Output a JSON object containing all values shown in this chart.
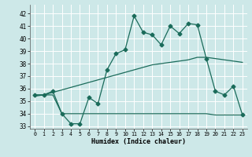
{
  "xlabel": "Humidex (Indice chaleur)",
  "background_color": "#cde8e8",
  "grid_color": "#ffffff",
  "line_color": "#1a6b5a",
  "x_ticks": [
    0,
    1,
    2,
    3,
    4,
    5,
    6,
    7,
    8,
    9,
    10,
    11,
    12,
    13,
    14,
    15,
    16,
    17,
    18,
    19,
    20,
    21,
    22,
    23
  ],
  "ylim": [
    32.8,
    42.7
  ],
  "xlim": [
    -0.5,
    23.5
  ],
  "yticks": [
    33,
    34,
    35,
    36,
    37,
    38,
    39,
    40,
    41,
    42
  ],
  "series1_x": [
    0,
    1,
    2,
    3,
    4,
    5,
    6,
    7,
    8,
    9,
    10,
    11,
    12,
    13,
    14,
    15,
    16,
    17,
    18,
    19,
    20,
    21,
    22,
    23
  ],
  "series1_y": [
    35.5,
    35.5,
    35.8,
    34.0,
    33.2,
    33.2,
    35.3,
    34.8,
    37.5,
    38.8,
    39.1,
    41.8,
    40.5,
    40.3,
    39.5,
    41.0,
    40.4,
    41.2,
    41.1,
    38.4,
    35.8,
    35.5,
    36.2,
    33.9
  ],
  "series2_x": [
    0,
    1,
    2,
    3,
    4,
    5,
    6,
    7,
    8,
    9,
    10,
    11,
    12,
    13,
    14,
    15,
    16,
    17,
    18,
    19,
    20,
    21,
    22,
    23
  ],
  "series2_y": [
    35.4,
    35.5,
    35.7,
    35.9,
    36.1,
    36.3,
    36.5,
    36.7,
    36.9,
    37.1,
    37.3,
    37.5,
    37.7,
    37.9,
    38.0,
    38.1,
    38.2,
    38.3,
    38.5,
    38.5,
    38.4,
    38.3,
    38.2,
    38.1
  ],
  "series3_x": [
    0,
    1,
    2,
    3,
    4,
    5,
    6,
    7,
    8,
    9,
    10,
    11,
    12,
    13,
    14,
    15,
    16,
    17,
    18,
    19,
    20,
    21,
    22,
    23
  ],
  "series3_y": [
    35.5,
    35.5,
    35.5,
    34.0,
    34.0,
    34.0,
    34.0,
    34.0,
    34.0,
    34.0,
    34.0,
    34.0,
    34.0,
    34.0,
    34.0,
    34.0,
    34.0,
    34.0,
    34.0,
    34.0,
    33.9,
    33.9,
    33.9,
    33.9
  ]
}
